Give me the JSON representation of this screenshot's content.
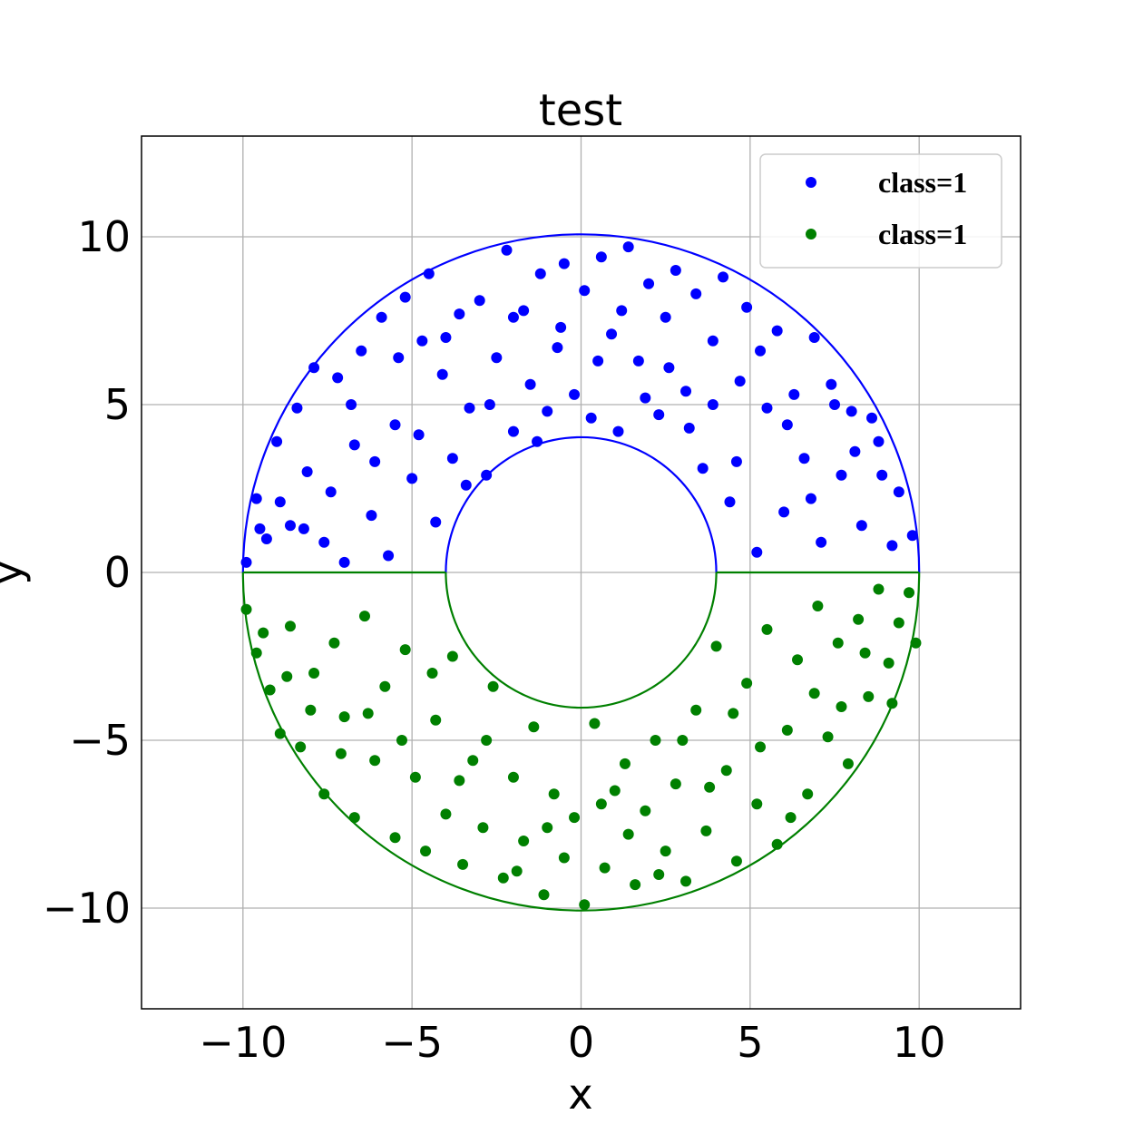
{
  "chart_data": {
    "type": "scatter",
    "title": "test",
    "xlabel": "x",
    "ylabel": "y",
    "xlim": [
      -13,
      13
    ],
    "ylim": [
      -13,
      13
    ],
    "x_ticks": [
      "−10",
      "−5",
      "0",
      "5",
      "10"
    ],
    "x_tick_values": [
      -10,
      -5,
      0,
      5,
      10
    ],
    "y_ticks": [
      "10",
      "5",
      "0",
      "−5",
      "−10"
    ],
    "y_tick_values": [
      10,
      5,
      0,
      -5,
      -10
    ],
    "grid": true,
    "legend": {
      "placement": "top-right"
    },
    "boundaries": {
      "inner_radius": 4,
      "outer_radius": 10
    },
    "series": [
      {
        "name": "class=1",
        "color": "#0000ff",
        "region": "upper half annulus",
        "points": [
          [
            -9.9,
            0.3
          ],
          [
            -9.6,
            2.2
          ],
          [
            -9.3,
            1.0
          ],
          [
            -9.0,
            3.9
          ],
          [
            -8.6,
            1.4
          ],
          [
            -8.4,
            4.9
          ],
          [
            -8.1,
            3.0
          ],
          [
            -7.9,
            6.1
          ],
          [
            -7.6,
            0.9
          ],
          [
            -7.2,
            5.8
          ],
          [
            -7.0,
            0.3
          ],
          [
            -6.7,
            3.8
          ],
          [
            -6.5,
            6.6
          ],
          [
            -6.2,
            1.7
          ],
          [
            -5.9,
            7.6
          ],
          [
            -5.7,
            0.5
          ],
          [
            -5.5,
            4.4
          ],
          [
            -5.2,
            8.2
          ],
          [
            -5.0,
            2.8
          ],
          [
            -4.7,
            6.9
          ],
          [
            -4.5,
            8.9
          ],
          [
            -4.3,
            1.5
          ],
          [
            -4.1,
            5.9
          ],
          [
            -3.8,
            3.4
          ],
          [
            -3.6,
            7.7
          ],
          [
            -3.3,
            4.9
          ],
          [
            -3.0,
            8.1
          ],
          [
            -2.8,
            2.9
          ],
          [
            -2.5,
            6.4
          ],
          [
            -2.2,
            9.6
          ],
          [
            -2.0,
            4.2
          ],
          [
            -1.7,
            7.8
          ],
          [
            -1.5,
            5.6
          ],
          [
            -1.2,
            8.9
          ],
          [
            -1.0,
            4.8
          ],
          [
            -0.7,
            6.7
          ],
          [
            -0.5,
            9.2
          ],
          [
            -0.2,
            5.3
          ],
          [
            0.1,
            8.4
          ],
          [
            0.3,
            4.6
          ],
          [
            0.6,
            9.4
          ],
          [
            0.9,
            7.1
          ],
          [
            1.1,
            4.2
          ],
          [
            1.4,
            9.7
          ],
          [
            1.7,
            6.3
          ],
          [
            2.0,
            8.6
          ],
          [
            2.3,
            4.7
          ],
          [
            2.5,
            7.6
          ],
          [
            2.8,
            9.0
          ],
          [
            3.1,
            5.4
          ],
          [
            3.4,
            8.3
          ],
          [
            3.6,
            3.1
          ],
          [
            3.9,
            6.9
          ],
          [
            4.2,
            8.8
          ],
          [
            4.4,
            2.1
          ],
          [
            4.7,
            5.7
          ],
          [
            4.9,
            7.9
          ],
          [
            5.2,
            0.6
          ],
          [
            5.5,
            4.9
          ],
          [
            5.8,
            7.2
          ],
          [
            6.0,
            1.8
          ],
          [
            6.3,
            5.3
          ],
          [
            6.6,
            3.4
          ],
          [
            6.9,
            7.0
          ],
          [
            7.1,
            0.9
          ],
          [
            7.4,
            5.6
          ],
          [
            7.7,
            2.9
          ],
          [
            8.0,
            4.8
          ],
          [
            8.3,
            1.4
          ],
          [
            8.6,
            4.6
          ],
          [
            8.9,
            2.9
          ],
          [
            9.2,
            0.8
          ],
          [
            9.4,
            2.4
          ],
          [
            9.8,
            1.1
          ],
          [
            -9.5,
            1.3
          ],
          [
            -8.9,
            2.1
          ],
          [
            -8.2,
            1.3
          ],
          [
            -7.4,
            2.4
          ],
          [
            -6.8,
            5.0
          ],
          [
            -6.1,
            3.3
          ],
          [
            -5.4,
            6.4
          ],
          [
            -4.8,
            4.1
          ],
          [
            -4.0,
            7.0
          ],
          [
            -3.4,
            2.6
          ],
          [
            -2.7,
            5.0
          ],
          [
            -2.0,
            7.6
          ],
          [
            -1.3,
            3.9
          ],
          [
            -0.6,
            7.3
          ],
          [
            0.5,
            6.3
          ],
          [
            1.2,
            7.8
          ],
          [
            1.9,
            5.2
          ],
          [
            2.6,
            6.1
          ],
          [
            3.2,
            4.3
          ],
          [
            3.9,
            5.0
          ],
          [
            4.6,
            3.3
          ],
          [
            5.3,
            6.6
          ],
          [
            6.1,
            4.4
          ],
          [
            6.8,
            2.2
          ],
          [
            7.5,
            5.0
          ],
          [
            8.1,
            3.6
          ],
          [
            8.8,
            3.9
          ]
        ]
      },
      {
        "name": "class=1",
        "color": "#008000",
        "region": "lower half annulus",
        "points": [
          [
            -9.9,
            -1.1
          ],
          [
            -9.6,
            -2.4
          ],
          [
            -9.2,
            -3.5
          ],
          [
            -8.9,
            -4.8
          ],
          [
            -8.6,
            -1.6
          ],
          [
            -8.3,
            -5.2
          ],
          [
            -7.9,
            -3.0
          ],
          [
            -7.6,
            -6.6
          ],
          [
            -7.3,
            -2.1
          ],
          [
            -7.0,
            -4.3
          ],
          [
            -6.7,
            -7.3
          ],
          [
            -6.4,
            -1.3
          ],
          [
            -6.1,
            -5.6
          ],
          [
            -5.8,
            -3.4
          ],
          [
            -5.5,
            -7.9
          ],
          [
            -5.2,
            -2.3
          ],
          [
            -4.9,
            -6.1
          ],
          [
            -4.6,
            -8.3
          ],
          [
            -4.3,
            -4.4
          ],
          [
            -4.0,
            -7.2
          ],
          [
            -3.8,
            -2.5
          ],
          [
            -3.5,
            -8.7
          ],
          [
            -3.2,
            -5.6
          ],
          [
            -2.9,
            -7.6
          ],
          [
            -2.6,
            -3.4
          ],
          [
            -2.3,
            -9.1
          ],
          [
            -2.0,
            -6.1
          ],
          [
            -1.7,
            -8.0
          ],
          [
            -1.4,
            -4.6
          ],
          [
            -1.1,
            -9.6
          ],
          [
            -0.8,
            -6.6
          ],
          [
            -0.5,
            -8.5
          ],
          [
            -0.2,
            -7.3
          ],
          [
            0.1,
            -9.9
          ],
          [
            0.4,
            -4.5
          ],
          [
            0.7,
            -8.8
          ],
          [
            1.0,
            -6.5
          ],
          [
            1.3,
            -5.7
          ],
          [
            1.6,
            -9.3
          ],
          [
            1.9,
            -7.1
          ],
          [
            2.2,
            -5.0
          ],
          [
            2.5,
            -8.3
          ],
          [
            2.8,
            -6.3
          ],
          [
            3.1,
            -9.2
          ],
          [
            3.4,
            -4.1
          ],
          [
            3.7,
            -7.7
          ],
          [
            4.0,
            -2.2
          ],
          [
            4.3,
            -5.9
          ],
          [
            4.6,
            -8.6
          ],
          [
            4.9,
            -3.3
          ],
          [
            5.2,
            -6.9
          ],
          [
            5.5,
            -1.7
          ],
          [
            5.8,
            -8.1
          ],
          [
            6.1,
            -4.7
          ],
          [
            6.4,
            -2.6
          ],
          [
            6.7,
            -6.6
          ],
          [
            7.0,
            -1.0
          ],
          [
            7.3,
            -4.9
          ],
          [
            7.6,
            -2.1
          ],
          [
            7.9,
            -5.7
          ],
          [
            8.2,
            -1.4
          ],
          [
            8.5,
            -3.7
          ],
          [
            8.8,
            -0.5
          ],
          [
            9.1,
            -2.7
          ],
          [
            9.4,
            -1.5
          ],
          [
            9.7,
            -0.6
          ],
          [
            9.9,
            -2.1
          ],
          [
            -9.4,
            -1.8
          ],
          [
            -8.7,
            -3.1
          ],
          [
            -8.0,
            -4.1
          ],
          [
            -7.1,
            -5.4
          ],
          [
            -6.3,
            -4.2
          ],
          [
            -5.3,
            -5.0
          ],
          [
            -4.4,
            -3.0
          ],
          [
            -3.6,
            -6.2
          ],
          [
            -2.8,
            -5.0
          ],
          [
            -1.9,
            -8.9
          ],
          [
            -1.0,
            -7.6
          ],
          [
            0.6,
            -6.9
          ],
          [
            1.4,
            -7.8
          ],
          [
            2.3,
            -9.0
          ],
          [
            3.0,
            -5.0
          ],
          [
            3.8,
            -6.4
          ],
          [
            4.5,
            -4.2
          ],
          [
            5.3,
            -5.2
          ],
          [
            6.2,
            -7.3
          ],
          [
            6.9,
            -3.6
          ],
          [
            7.7,
            -4.0
          ],
          [
            8.4,
            -2.4
          ],
          [
            9.2,
            -3.9
          ]
        ]
      }
    ]
  }
}
